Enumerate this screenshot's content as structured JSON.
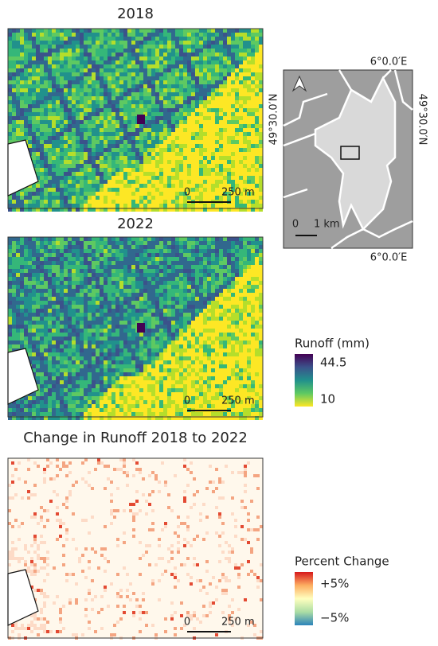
{
  "panels": [
    {
      "title": "2018",
      "scale_bar": {
        "zero": "0",
        "length": "250 m"
      }
    },
    {
      "title": "2022",
      "scale_bar": {
        "zero": "0",
        "length": "250 m"
      }
    },
    {
      "title": "Change in Runoff 2018 to 2022",
      "scale_bar": {
        "zero": "0",
        "length": "250 m"
      }
    }
  ],
  "inset": {
    "lon_top": "6°0.0′E",
    "lon_bottom": "6°0.0′E",
    "lat_left": "49°30.0′N",
    "lat_right": "49°30.0′N",
    "scale_bar": {
      "zero": "0",
      "length": "1 km"
    }
  },
  "legends": [
    {
      "title": "Runoff (mm)",
      "max": "44.5",
      "min": "10"
    },
    {
      "title": "Percent Change",
      "max": "+5%",
      "min": "−5%"
    }
  ]
}
